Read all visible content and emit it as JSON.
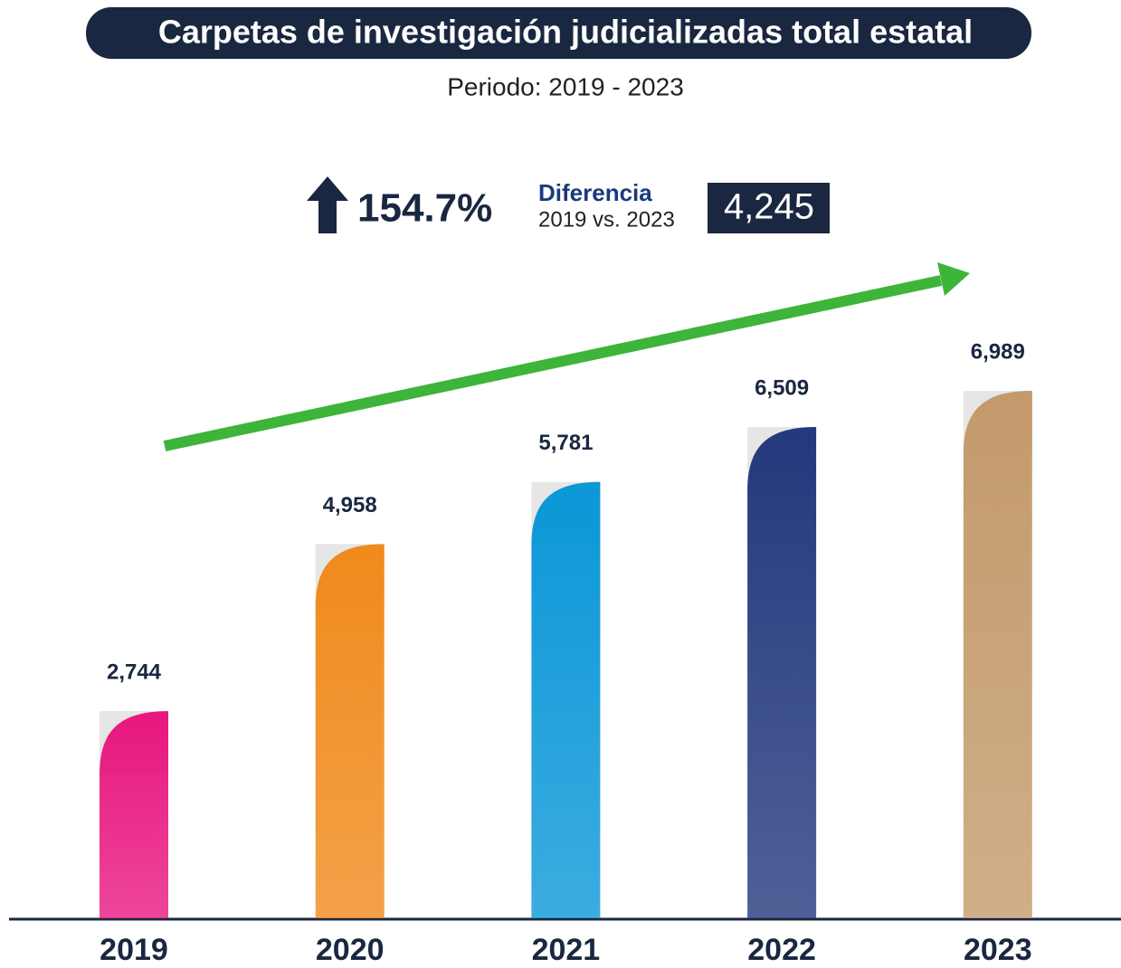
{
  "chart_data": {
    "type": "bar",
    "title": "Carpetas de investigación judicializadas total estatal",
    "subtitle": "Periodo: 2019 - 2023",
    "annotations": {
      "change": "154.7%",
      "label": "Diferencia",
      "period": "2019 vs. 2023",
      "difference": "4,245"
    },
    "categories": [
      "2019",
      "2020",
      "2021",
      "2022",
      "2023"
    ],
    "values": [
      2744,
      4958,
      5781,
      6509,
      6989
    ],
    "value_labels": [
      "2,744",
      "4,958",
      "5,781",
      "6,509",
      "6,989"
    ],
    "colors": [
      "#e8177f",
      "#f08a1c",
      "#0b97d8",
      "#23397d",
      "#c39a6b"
    ]
  }
}
